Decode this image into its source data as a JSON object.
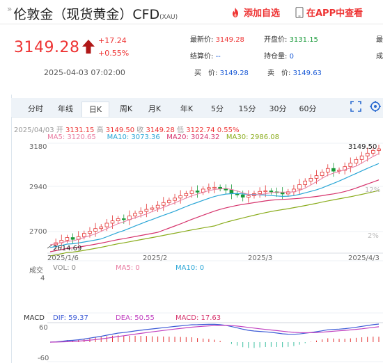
{
  "header": {
    "arrow": "»",
    "title": "伦敦金（现货黄金）CFD",
    "subtitle": "(XAU)",
    "add_watch": "添加自选",
    "view_app": "在APP中查看"
  },
  "quote": {
    "price": "3149.28",
    "change": "+17.24",
    "change_pct": "+0.55%",
    "time": "2025-04-03 07:02:00"
  },
  "stats": {
    "latest_label": "最新价:",
    "latest_value": "3149.28",
    "open_label": "开盘价:",
    "open_value": "3131.15",
    "settle_label": "结算价:",
    "settle_value": "--",
    "position_label": "持仓量:",
    "position_value": "0",
    "buy_label": "买　价:",
    "buy_value": "3149.28",
    "sell_label": "卖　价:",
    "sell_value": "3149.63",
    "col3_row1": "最",
    "col3_row2": "成"
  },
  "tabs": [
    "分时",
    "年线",
    "日K",
    "周K",
    "月K",
    "年K",
    "5分",
    "15分",
    "30分",
    "60分"
  ],
  "active_tab": 2,
  "ohlc": {
    "date": "2025/04/03",
    "open_label": "开",
    "open": "3131.15",
    "high_label": "高",
    "high": "3149.50",
    "close_label": "收",
    "close": "3149.28",
    "low_label": "低",
    "low": "3122.74",
    "pct": "0.55%"
  },
  "ma_legend": {
    "ma5": "MA5: 3120.65",
    "ma10": "MA10: 3073.36",
    "ma20": "MA20: 3024.32",
    "ma30": "MA30: 2986.08"
  },
  "axis": {
    "y_top": "3180",
    "y_mid": "2940",
    "y_low": "2700",
    "pct_12": "12%",
    "pct_2": "2%",
    "max_label": "3149.50",
    "min_label": "2614.69",
    "x_labels": [
      "2025/1/6",
      "2025/2",
      "2025/3",
      "2025/4/3"
    ]
  },
  "volume": {
    "title": "成交",
    "vol": "VOL: 0",
    "ma5": "MA5: 0",
    "ma10": "MA10: 0",
    "scale": "4"
  },
  "macd": {
    "title": "MACD",
    "dif": "DIF: 59.37",
    "dea": "DEA: 50.55",
    "macd": "MACD: 17.63",
    "y_top": "60",
    "y_bottom": "-60"
  },
  "colors": {
    "up": "#e33333",
    "down": "#1a9a3a",
    "ma5": "#e87aa0",
    "ma10": "#2aa6d6",
    "ma20": "#d6336c",
    "ma30": "#8aac1c",
    "dif": "#3d5bd6",
    "dea": "#c040c0"
  },
  "chart_data": {
    "type": "candlestick",
    "x_range": [
      "2025/1/6",
      "2025/4/3"
    ],
    "ylim": [
      2614.69,
      3149.5
    ],
    "points": [
      2614.69,
      2626,
      2640,
      2655,
      2645,
      2660,
      2678,
      2690,
      2705,
      2715,
      2735,
      2748,
      2760,
      2755,
      2775,
      2790,
      2800,
      2812,
      2820,
      2835,
      2850,
      2862,
      2875,
      2888,
      2900,
      2915,
      2908,
      2925,
      2933,
      2935,
      2928,
      2920,
      2900,
      2893,
      2880,
      2888,
      2900,
      2912,
      2915,
      2910,
      2905,
      2898,
      2910,
      2925,
      2950,
      2970,
      2985,
      3000,
      3020,
      3040,
      3025,
      3030,
      3050,
      3070,
      3090,
      3110,
      3125,
      3140,
      3149.28
    ]
  }
}
